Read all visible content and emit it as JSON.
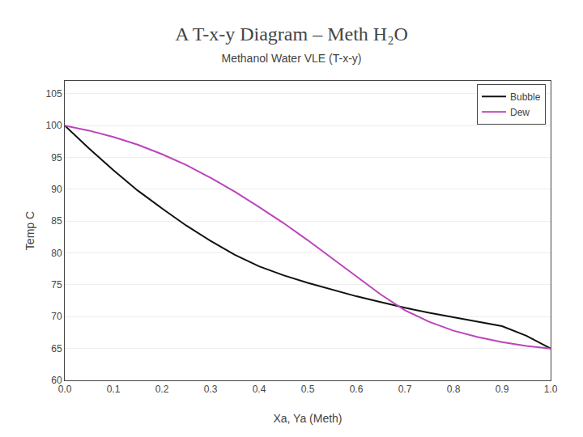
{
  "chart_data": {
    "type": "line",
    "title": "A T-x-y Diagram – Meth H₂O",
    "subtitle": "Methanol Water VLE (T-x-y)",
    "xlabel": "Xa, Ya (Meth)",
    "ylabel": "Temp C",
    "x": [
      0.0,
      0.05,
      0.1,
      0.15,
      0.2,
      0.25,
      0.3,
      0.35,
      0.4,
      0.45,
      0.5,
      0.55,
      0.6,
      0.65,
      0.7,
      0.75,
      0.8,
      0.85,
      0.9,
      0.95,
      1.0
    ],
    "series": [
      {
        "name": "Bubble",
        "color": "#111111",
        "values": [
          100.0,
          96.4,
          93.0,
          89.8,
          87.0,
          84.3,
          81.9,
          79.7,
          77.9,
          76.5,
          75.3,
          74.2,
          73.2,
          72.3,
          71.4,
          70.6,
          69.9,
          69.2,
          68.5,
          67.0,
          65.0
        ]
      },
      {
        "name": "Dew",
        "color": "#bb44bb",
        "values": [
          100.0,
          99.2,
          98.2,
          97.0,
          95.5,
          93.8,
          91.8,
          89.6,
          87.2,
          84.7,
          82.0,
          79.2,
          76.3,
          73.5,
          71.0,
          69.2,
          67.8,
          66.8,
          66.0,
          65.4,
          65.0
        ]
      }
    ],
    "xlim": [
      0.0,
      1.0
    ],
    "ylim": [
      60,
      107
    ],
    "xticks": [
      {
        "value": 0,
        "label": "0.0"
      },
      0.1,
      0.2,
      0.3,
      0.4,
      0.5,
      0.6,
      0.7,
      0.8,
      0.9,
      {
        "value": 1,
        "label": "1.0"
      }
    ],
    "yticks": [
      60,
      65,
      70,
      75,
      80,
      85,
      90,
      95,
      100,
      105
    ],
    "grid": true,
    "legend": "upper right"
  }
}
